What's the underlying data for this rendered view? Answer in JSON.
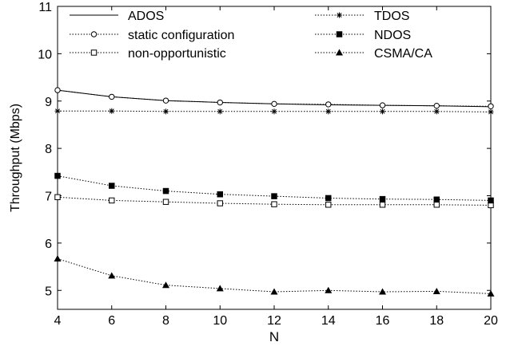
{
  "chart_data": {
    "type": "line",
    "title": "",
    "xlabel": "N",
    "ylabel": "Throughput (Mbps)",
    "xlim": [
      4,
      20
    ],
    "ylim": [
      4.6,
      11
    ],
    "x": [
      4,
      6,
      8,
      10,
      12,
      14,
      16,
      18,
      20
    ],
    "x_ticks": [
      4,
      6,
      8,
      10,
      12,
      14,
      16,
      18,
      20
    ],
    "y_ticks": [
      5,
      6,
      7,
      8,
      9,
      10,
      11
    ],
    "grid": false,
    "legend_position": "top",
    "series": [
      {
        "name": "ADOS",
        "marker": "none",
        "line_style": "solid",
        "values": [
          9.23,
          9.09,
          9.01,
          8.97,
          8.94,
          8.92,
          8.91,
          8.9,
          8.88
        ]
      },
      {
        "name": "static configuration",
        "marker": "circle-open",
        "line_style": "dotted",
        "values": [
          9.23,
          9.09,
          9.01,
          8.97,
          8.94,
          8.93,
          8.91,
          8.9,
          8.89
        ]
      },
      {
        "name": "non-opportunistic",
        "marker": "square-open",
        "line_style": "dotted",
        "values": [
          6.97,
          6.9,
          6.87,
          6.84,
          6.82,
          6.81,
          6.81,
          6.81,
          6.8
        ]
      },
      {
        "name": "TDOS",
        "marker": "asterisk",
        "line_style": "dotted",
        "values": [
          8.79,
          8.79,
          8.78,
          8.78,
          8.78,
          8.78,
          8.78,
          8.78,
          8.77
        ]
      },
      {
        "name": "NDOS",
        "marker": "square-filled",
        "line_style": "dotted",
        "values": [
          7.42,
          7.21,
          7.1,
          7.03,
          6.99,
          6.95,
          6.93,
          6.92,
          6.9
        ]
      },
      {
        "name": "CSMA/CA",
        "marker": "triangle-filled",
        "line_style": "dotted",
        "values": [
          5.67,
          5.31,
          5.11,
          5.04,
          4.97,
          5.0,
          4.97,
          4.98,
          4.93
        ]
      }
    ]
  }
}
